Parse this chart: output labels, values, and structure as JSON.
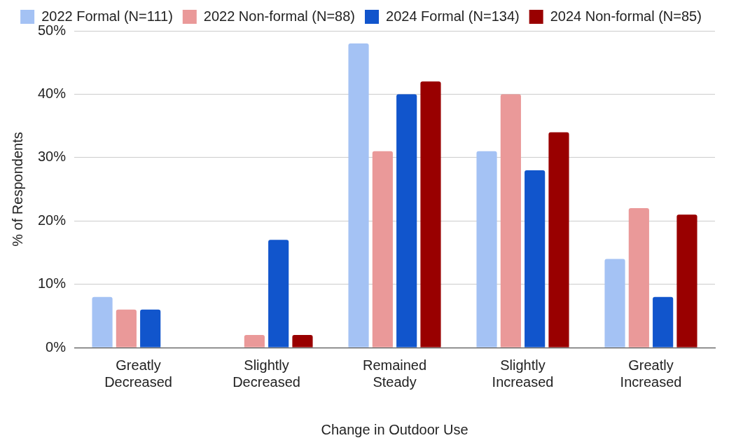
{
  "chart_data": {
    "type": "bar",
    "xlabel": "Change in Outdoor Use",
    "ylabel": "% of Respondents",
    "categories": [
      "Greatly Decreased",
      "Slightly Decreased",
      "Remained Steady",
      "Slightly Increased",
      "Greatly Increased"
    ],
    "series": [
      {
        "name": "2022 Formal (N=111)",
        "color": "#a4c2f4",
        "values": [
          8,
          0,
          48,
          31,
          14
        ]
      },
      {
        "name": "2022 Non-formal (N=88)",
        "color": "#ea9999",
        "values": [
          6,
          2,
          31,
          40,
          22
        ]
      },
      {
        "name": "2024 Formal (N=134)",
        "color": "#1155cc",
        "values": [
          6,
          17,
          40,
          28,
          8
        ]
      },
      {
        "name": "2024 Non-formal (N=85)",
        "color": "#990000",
        "values": [
          0,
          2,
          42,
          34,
          21
        ]
      }
    ],
    "ylim": [
      0,
      50
    ],
    "yticks": [
      {
        "value": 0,
        "label": "0%"
      },
      {
        "value": 10,
        "label": "10%"
      },
      {
        "value": 20,
        "label": "20%"
      },
      {
        "value": 30,
        "label": "30%"
      },
      {
        "value": 40,
        "label": "40%"
      },
      {
        "value": 50,
        "label": "50%"
      }
    ],
    "grid": "y",
    "legend": "top"
  }
}
